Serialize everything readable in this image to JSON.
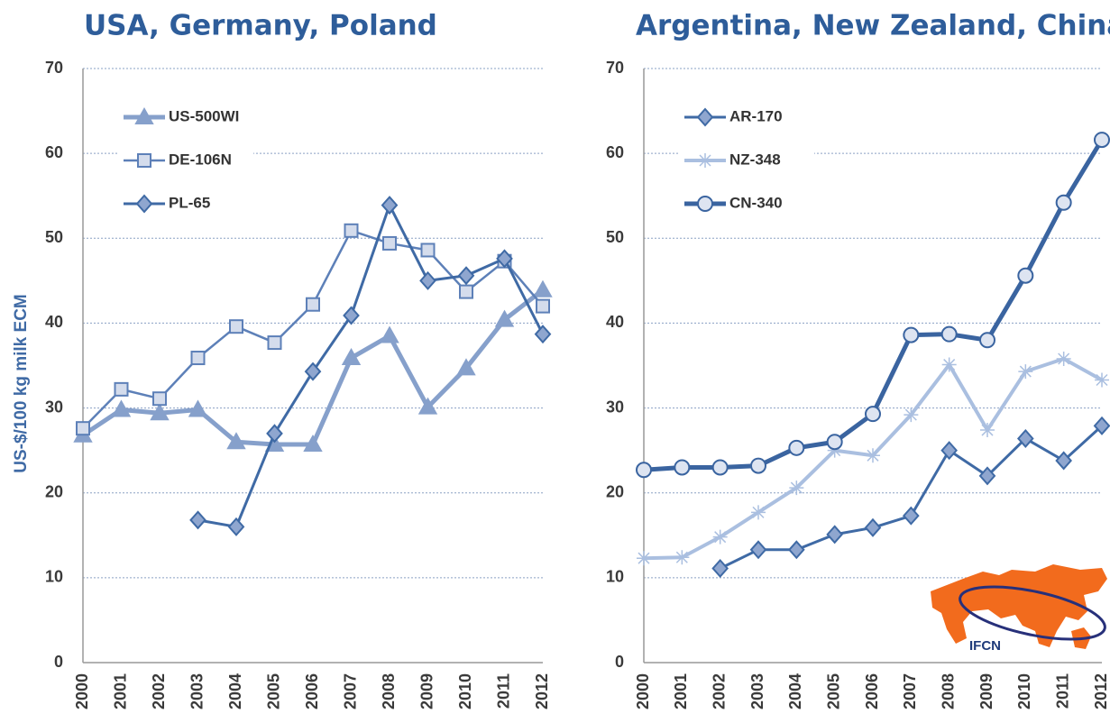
{
  "chart_data": [
    {
      "type": "line",
      "title": "USA, Germany, Poland",
      "ylabel": "US-$/100 kg milk ECM",
      "categories": [
        "2000",
        "2001",
        "2002",
        "2003",
        "2004",
        "2005",
        "2006",
        "2007",
        "2008",
        "2009",
        "2010",
        "2011",
        "2012"
      ],
      "ylim": [
        0,
        70
      ],
      "yticks": [
        0,
        10,
        20,
        30,
        40,
        50,
        60,
        70
      ],
      "grid": true,
      "legend": "upper left",
      "series": [
        {
          "name": "US-500WI",
          "color": "#86a0cb",
          "marker": "triangle",
          "line_width": 5,
          "values": [
            26.8,
            29.8,
            29.4,
            29.8,
            26.0,
            25.7,
            25.7,
            35.9,
            38.5,
            30.1,
            34.7,
            40.4,
            43.9
          ]
        },
        {
          "name": "DE-106N",
          "color": "#5d80b8",
          "marker": "square",
          "line_width": 2.5,
          "values": [
            27.6,
            32.2,
            31.1,
            35.9,
            39.6,
            37.7,
            42.2,
            50.9,
            49.4,
            48.6,
            43.7,
            47.3,
            42.0
          ]
        },
        {
          "name": "PL-65",
          "color": "#3f6aa5",
          "marker": "diamond",
          "line_width": 3,
          "values": [
            null,
            null,
            null,
            16.8,
            16.0,
            27.0,
            34.3,
            40.9,
            53.9,
            45.0,
            45.6,
            47.6,
            38.7
          ]
        }
      ]
    },
    {
      "type": "line",
      "title": "Argentina, New Zealand, China",
      "categories": [
        "2000",
        "2001",
        "2002",
        "2003",
        "2004",
        "2005",
        "2006",
        "2007",
        "2008",
        "2009",
        "2010",
        "2011",
        "2012"
      ],
      "ylim": [
        0,
        70
      ],
      "yticks": [
        0,
        10,
        20,
        30,
        40,
        50,
        60,
        70
      ],
      "grid": true,
      "legend": "upper left",
      "series": [
        {
          "name": "AR-170",
          "color": "#3f6aa5",
          "marker": "diamond",
          "line_width": 3,
          "values": [
            null,
            null,
            11.1,
            13.3,
            13.3,
            15.1,
            15.9,
            17.3,
            25.0,
            22.0,
            26.4,
            23.8,
            27.9
          ]
        },
        {
          "name": "NZ-348",
          "color": "#aabfe0",
          "marker": "star",
          "line_width": 4,
          "values": [
            12.3,
            12.4,
            14.8,
            17.7,
            20.6,
            25.0,
            24.4,
            29.2,
            35.1,
            27.4,
            34.3,
            35.8,
            33.3
          ]
        },
        {
          "name": "CN-340",
          "color": "#3a64a0",
          "marker": "circle",
          "line_width": 5,
          "values": [
            22.7,
            23.0,
            23.0,
            23.2,
            25.3,
            26.0,
            29.3,
            38.6,
            38.7,
            38.0,
            45.6,
            54.2,
            61.6
          ]
        }
      ]
    }
  ],
  "logo": "IFCN"
}
